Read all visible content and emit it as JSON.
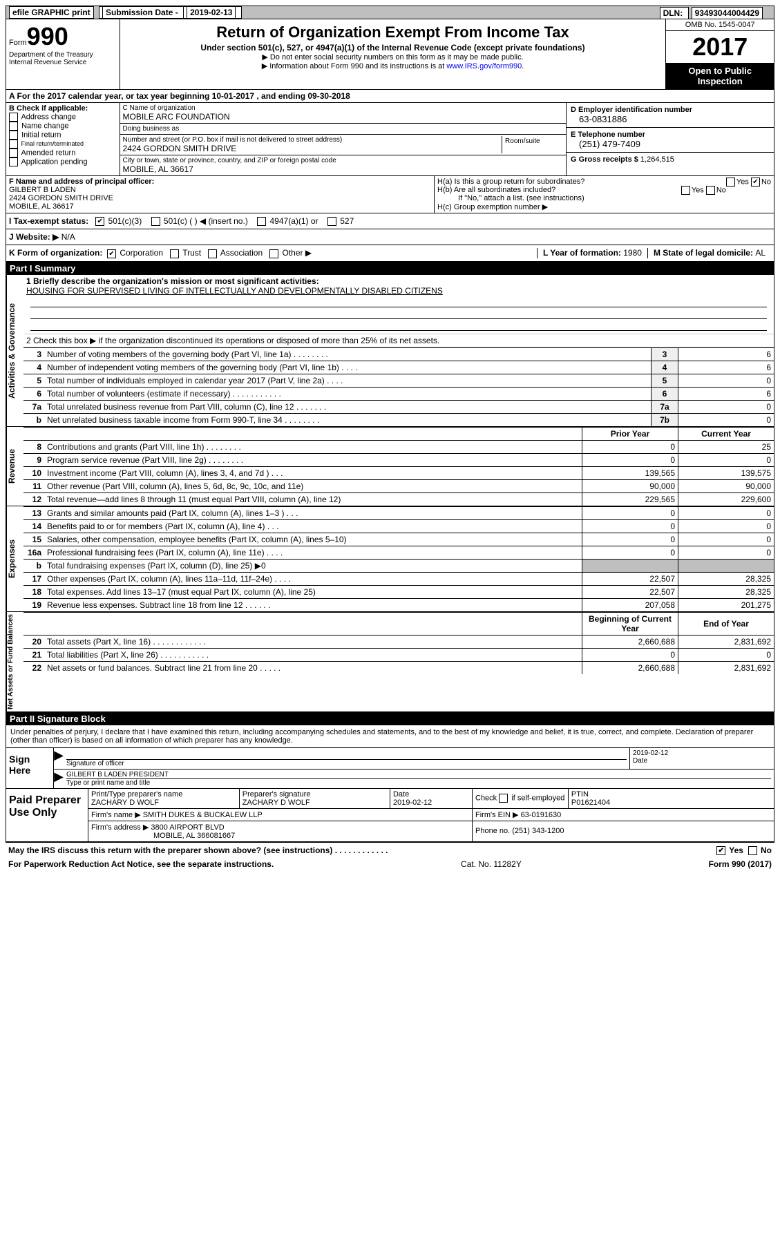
{
  "top": {
    "efile": "efile GRAPHIC print",
    "submission_label": "Submission Date - ",
    "submission_date": "2019-02-13",
    "dln_label": "DLN: ",
    "dln": "93493044004429"
  },
  "header": {
    "form_label": "Form",
    "form_number": "990",
    "dept1": "Department of the Treasury",
    "dept2": "Internal Revenue Service",
    "title": "Return of Organization Exempt From Income Tax",
    "subtitle": "Under section 501(c), 527, or 4947(a)(1) of the Internal Revenue Code (except private foundations)",
    "note1": "▶ Do not enter social security numbers on this form as it may be made public.",
    "note2_pre": "▶ Information about Form 990 and its instructions is at ",
    "note2_link": "www.IRS.gov/form990",
    "omb": "OMB No. 1545-0047",
    "year": "2017",
    "open": "Open to Public Inspection"
  },
  "a": {
    "text": "A  For the 2017 calendar year, or tax year beginning 10-01-2017   , and ending 09-30-2018"
  },
  "b": {
    "label": "B Check if applicable:",
    "items": [
      "Address change",
      "Name change",
      "Initial return",
      "Final return/terminated",
      "Amended return",
      "Application pending"
    ]
  },
  "c": {
    "name_label": "C Name of organization",
    "name": "MOBILE ARC FOUNDATION",
    "dba_label": "Doing business as",
    "dba": "",
    "street_label": "Number and street (or P.O. box if mail is not delivered to street address)",
    "street": "2424 GORDON SMITH DRIVE",
    "room_label": "Room/suite",
    "city_label": "City or town, state or province, country, and ZIP or foreign postal code",
    "city": "MOBILE, AL  36617"
  },
  "d": {
    "ein_label": "D Employer identification number",
    "ein": "63-0831886",
    "phone_label": "E Telephone number",
    "phone": "(251) 479-7409",
    "gross_label": "G Gross receipts $ ",
    "gross": "1,264,515"
  },
  "f": {
    "label": "F  Name and address of principal officer:",
    "name": "GILBERT B LADEN",
    "street": "2424 GORDON SMITH DRIVE",
    "city": "MOBILE, AL  36617"
  },
  "h": {
    "a_label": "H(a)  Is this a group return for subordinates?",
    "b_label": "H(b)  Are all subordinates included?",
    "b_note": "If \"No,\" attach a list. (see instructions)",
    "c_label": "H(c)  Group exemption number ▶",
    "yes": "Yes",
    "no": "No"
  },
  "i": {
    "label": "I  Tax-exempt status:",
    "o1": "501(c)(3)",
    "o2": "501(c) (  ) ◀ (insert no.)",
    "o3": "4947(a)(1) or",
    "o4": "527"
  },
  "j": {
    "label": "J  Website: ▶",
    "value": "N/A"
  },
  "k": {
    "label": "K Form of organization:",
    "o1": "Corporation",
    "o2": "Trust",
    "o3": "Association",
    "o4": "Other ▶",
    "l_label": "L Year of formation: ",
    "l_val": "1980",
    "m_label": "M State of legal domicile: ",
    "m_val": "AL"
  },
  "part1": {
    "header": "Part I    Summary",
    "tab_activities": "Activities & Governance",
    "tab_revenue": "Revenue",
    "tab_expenses": "Expenses",
    "tab_netassets": "Net Assets or Fund Balances",
    "mission_label": "1  Briefly describe the organization's mission or most significant activities:",
    "mission": "HOUSING FOR SUPERVISED LIVING OF INTELLECTUALLY AND DEVELOPMENTALLY DISABLED CITIZENS",
    "line2": "2  Check this box ▶      if the organization discontinued its operations or disposed of more than 25% of its net assets.",
    "rows_top": [
      {
        "n": "3",
        "t": "Number of voting members of the governing body (Part VI, line 1a)  .  .  .  .  .  .  .  .",
        "b": "3",
        "v": "6"
      },
      {
        "n": "4",
        "t": "Number of independent voting members of the governing body (Part VI, line 1b)  .  .  .  .",
        "b": "4",
        "v": "6"
      },
      {
        "n": "5",
        "t": "Total number of individuals employed in calendar year 2017 (Part V, line 2a)  .  .  .  .",
        "b": "5",
        "v": "0"
      },
      {
        "n": "6",
        "t": "Total number of volunteers (estimate if necessary)  .  .  .  .  .  .  .  .  .  .  .",
        "b": "6",
        "v": "6"
      },
      {
        "n": "7a",
        "t": "Total unrelated business revenue from Part VIII, column (C), line 12  .  .  .  .  .  .  .",
        "b": "7a",
        "v": "0"
      },
      {
        "n": "b",
        "t": "Net unrelated business taxable income from Form 990-T, line 34  .  .  .  .  .  .  .  .",
        "b": "7b",
        "v": "0"
      }
    ],
    "hdr_prior": "Prior Year",
    "hdr_current": "Current Year",
    "rows_rev": [
      {
        "n": "8",
        "t": "Contributions and grants (Part VIII, line 1h)  .  .  .  .  .  .  .  .",
        "p": "0",
        "c": "25"
      },
      {
        "n": "9",
        "t": "Program service revenue (Part VIII, line 2g)  .  .  .  .  .  .  .  .",
        "p": "0",
        "c": "0"
      },
      {
        "n": "10",
        "t": "Investment income (Part VIII, column (A), lines 3, 4, and 7d )  .  .  .",
        "p": "139,565",
        "c": "139,575"
      },
      {
        "n": "11",
        "t": "Other revenue (Part VIII, column (A), lines 5, 6d, 8c, 9c, 10c, and 11e)",
        "p": "90,000",
        "c": "90,000"
      },
      {
        "n": "12",
        "t": "Total revenue—add lines 8 through 11 (must equal Part VIII, column (A), line 12)",
        "p": "229,565",
        "c": "229,600"
      }
    ],
    "rows_exp": [
      {
        "n": "13",
        "t": "Grants and similar amounts paid (Part IX, column (A), lines 1–3 )  .  .  .",
        "p": "0",
        "c": "0"
      },
      {
        "n": "14",
        "t": "Benefits paid to or for members (Part IX, column (A), line 4)  .  .  .",
        "p": "0",
        "c": "0"
      },
      {
        "n": "15",
        "t": "Salaries, other compensation, employee benefits (Part IX, column (A), lines 5–10)",
        "p": "0",
        "c": "0"
      },
      {
        "n": "16a",
        "t": "Professional fundraising fees (Part IX, column (A), line 11e)  .  .  .  .",
        "p": "0",
        "c": "0"
      },
      {
        "n": "b",
        "t": "Total fundraising expenses (Part IX, column (D), line 25) ▶0",
        "p": "",
        "c": "",
        "grey": true
      },
      {
        "n": "17",
        "t": "Other expenses (Part IX, column (A), lines 11a–11d, 11f–24e)  .  .  .  .",
        "p": "22,507",
        "c": "28,325"
      },
      {
        "n": "18",
        "t": "Total expenses. Add lines 13–17 (must equal Part IX, column (A), line 25)",
        "p": "22,507",
        "c": "28,325"
      },
      {
        "n": "19",
        "t": "Revenue less expenses. Subtract line 18 from line 12  .  .  .  .  .  .",
        "p": "207,058",
        "c": "201,275"
      }
    ],
    "hdr_begin": "Beginning of Current Year",
    "hdr_end": "End of Year",
    "rows_net": [
      {
        "n": "20",
        "t": "Total assets (Part X, line 16)  .  .  .  .  .  .  .  .  .  .  .  .",
        "p": "2,660,688",
        "c": "2,831,692"
      },
      {
        "n": "21",
        "t": "Total liabilities (Part X, line 26)  .  .  .  .  .  .  .  .  .  .  .",
        "p": "0",
        "c": "0"
      },
      {
        "n": "22",
        "t": "Net assets or fund balances. Subtract line 21 from line 20 .  .  .  .  .",
        "p": "2,660,688",
        "c": "2,831,692"
      }
    ]
  },
  "part2": {
    "header": "Part II    Signature Block",
    "perjury": "Under penalties of perjury, I declare that I have examined this return, including accompanying schedules and statements, and to the best of my knowledge and belief, it is true, correct, and complete. Declaration of preparer (other than officer) is based on all information of which preparer has any knowledge.",
    "sign_here": "Sign Here",
    "sig_officer": "Signature of officer",
    "sig_date": "2019-02-12",
    "date_label": "Date",
    "name_title": "GILBERT B LADEN PRESIDENT",
    "name_title_label": "Type or print name and title",
    "paid_label": "Paid Preparer Use Only",
    "prep_name_label": "Print/Type preparer's name",
    "prep_name": "ZACHARY D WOLF",
    "prep_sig_label": "Preparer's signature",
    "prep_sig": "ZACHARY D WOLF",
    "prep_date_label": "Date",
    "prep_date": "2019-02-12",
    "check_label": "Check      if self-employed",
    "ptin_label": "PTIN",
    "ptin": "P01621404",
    "firm_name_label": "Firm's name    ▶",
    "firm_name": "SMITH DUKES & BUCKALEW LLP",
    "firm_ein_label": "Firm's EIN ▶",
    "firm_ein": "63-0191630",
    "firm_addr_label": "Firm's address ▶",
    "firm_addr1": "3800 AIRPORT BLVD",
    "firm_addr2": "MOBILE, AL  366081667",
    "firm_phone_label": "Phone no. ",
    "firm_phone": "(251) 343-1200",
    "discuss": "May the IRS discuss this return with the preparer shown above? (see instructions)  .  .  .  .  .  .  .  .  .  .  .  .",
    "yes": "Yes",
    "no": "No"
  },
  "footer": {
    "pra": "For Paperwork Reduction Act Notice, see the separate instructions.",
    "cat": "Cat. No. 11282Y",
    "form": "Form 990 (2017)"
  }
}
